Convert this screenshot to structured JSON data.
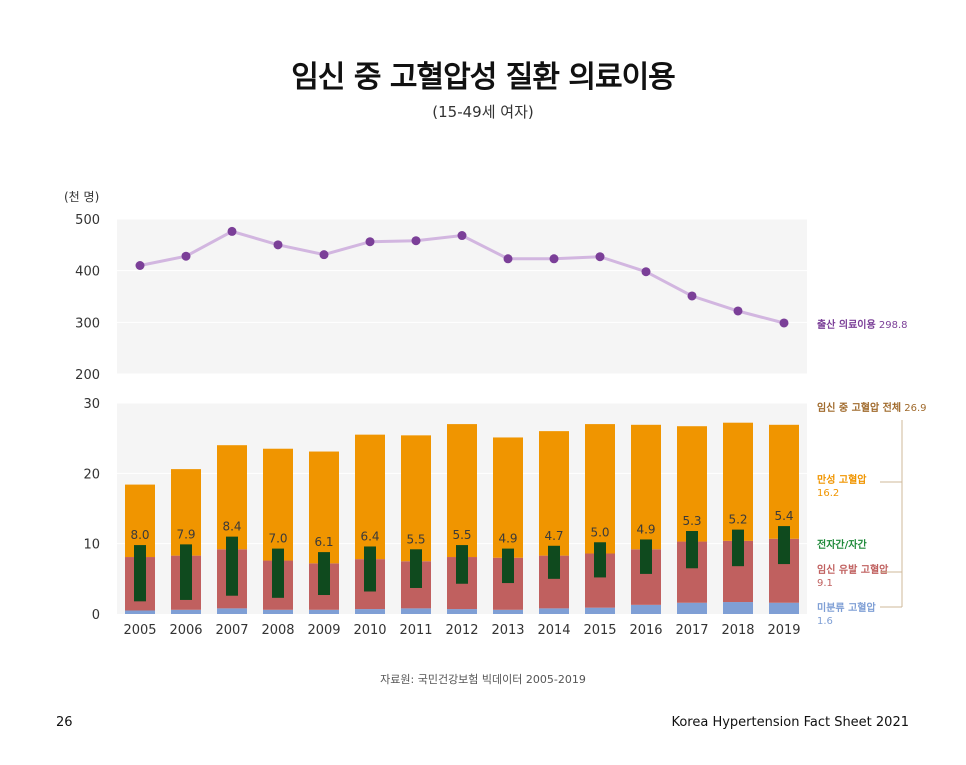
{
  "page": {
    "title": "임신 중 고혈압성 질환 의료이용",
    "subtitle": "(15-49세 여자)",
    "source": "자료원: 국민건강보험 빅데이터 2005-2019",
    "page_number": "26",
    "footer": "Korea Hypertension Fact Sheet 2021"
  },
  "chart_data": [
    {
      "type": "line",
      "unit_label": "(천 명)",
      "ylim": [
        200,
        500
      ],
      "yticks": [
        200,
        300,
        400,
        500
      ],
      "x": [
        2005,
        2006,
        2007,
        2008,
        2009,
        2010,
        2011,
        2012,
        2013,
        2014,
        2015,
        2016,
        2017,
        2018,
        2019
      ],
      "series": [
        {
          "name": "출산 의료이용",
          "values": [
            410,
            428,
            476,
            450,
            431,
            456,
            458,
            468,
            423,
            423,
            427,
            398,
            351,
            322,
            298.8
          ],
          "end_label": "298.8",
          "color": "#7b3f98",
          "line_color": "#d2b6e0"
        }
      ]
    },
    {
      "type": "bar",
      "ylim": [
        0,
        30
      ],
      "yticks": [
        0,
        10,
        20,
        30
      ],
      "categories": [
        "2005",
        "2006",
        "2007",
        "2008",
        "2009",
        "2010",
        "2011",
        "2012",
        "2013",
        "2014",
        "2015",
        "2016",
        "2017",
        "2018",
        "2019"
      ],
      "stacked_series": [
        {
          "name": "미분류 고혈압",
          "values": [
            0.5,
            0.6,
            0.8,
            0.6,
            0.6,
            0.7,
            0.8,
            0.7,
            0.6,
            0.8,
            0.9,
            1.3,
            1.6,
            1.7,
            1.6
          ],
          "end_label": "1.6",
          "color": "#7f9fd5"
        },
        {
          "name": "임신 유발 고혈압",
          "values": [
            7.6,
            7.7,
            8.4,
            7.0,
            6.6,
            7.1,
            6.7,
            7.4,
            7.4,
            7.5,
            7.7,
            7.9,
            8.7,
            8.7,
            9.1
          ],
          "end_label": "9.1",
          "color": "#c0605f"
        },
        {
          "name": "만성 고혈압",
          "values": [
            10.3,
            12.3,
            14.8,
            15.9,
            15.9,
            17.7,
            17.9,
            18.9,
            17.1,
            17.7,
            18.4,
            17.7,
            16.4,
            16.8,
            16.2
          ],
          "end_label": "16.2",
          "color": "#f09500"
        }
      ],
      "total": {
        "name": "임신 중 고혈압 전체",
        "values": [
          18.4,
          20.6,
          24.0,
          23.5,
          23.1,
          25.5,
          25.4,
          27.0,
          25.1,
          26.0,
          27.0,
          26.9,
          26.7,
          27.2,
          26.9
        ],
        "end_label": "26.9",
        "color": "#a06a2c"
      },
      "overlay": {
        "name": "전자간/자간",
        "values": [
          8.0,
          7.9,
          8.4,
          7.0,
          6.1,
          6.4,
          5.5,
          5.5,
          4.9,
          4.7,
          5.0,
          4.9,
          5.3,
          5.2,
          5.4
        ],
        "labels": [
          "8.0",
          "7.9",
          "8.4",
          "7.0",
          "6.1",
          "6.4",
          "5.5",
          "5.5",
          "4.9",
          "4.7",
          "5.0",
          "4.9",
          "5.3",
          "5.2",
          "5.4"
        ],
        "top": [
          9.8,
          9.9,
          11.0,
          9.3,
          8.8,
          9.6,
          9.2,
          9.8,
          9.3,
          9.7,
          10.2,
          10.6,
          11.8,
          12.0,
          12.5
        ],
        "color": "#0f4a1e",
        "legend_color": "#1f8a3a"
      }
    }
  ],
  "colors": {
    "panel_bg": "#f5f5f5",
    "axis_text": "#333333",
    "bracket": "#cfb89a"
  }
}
